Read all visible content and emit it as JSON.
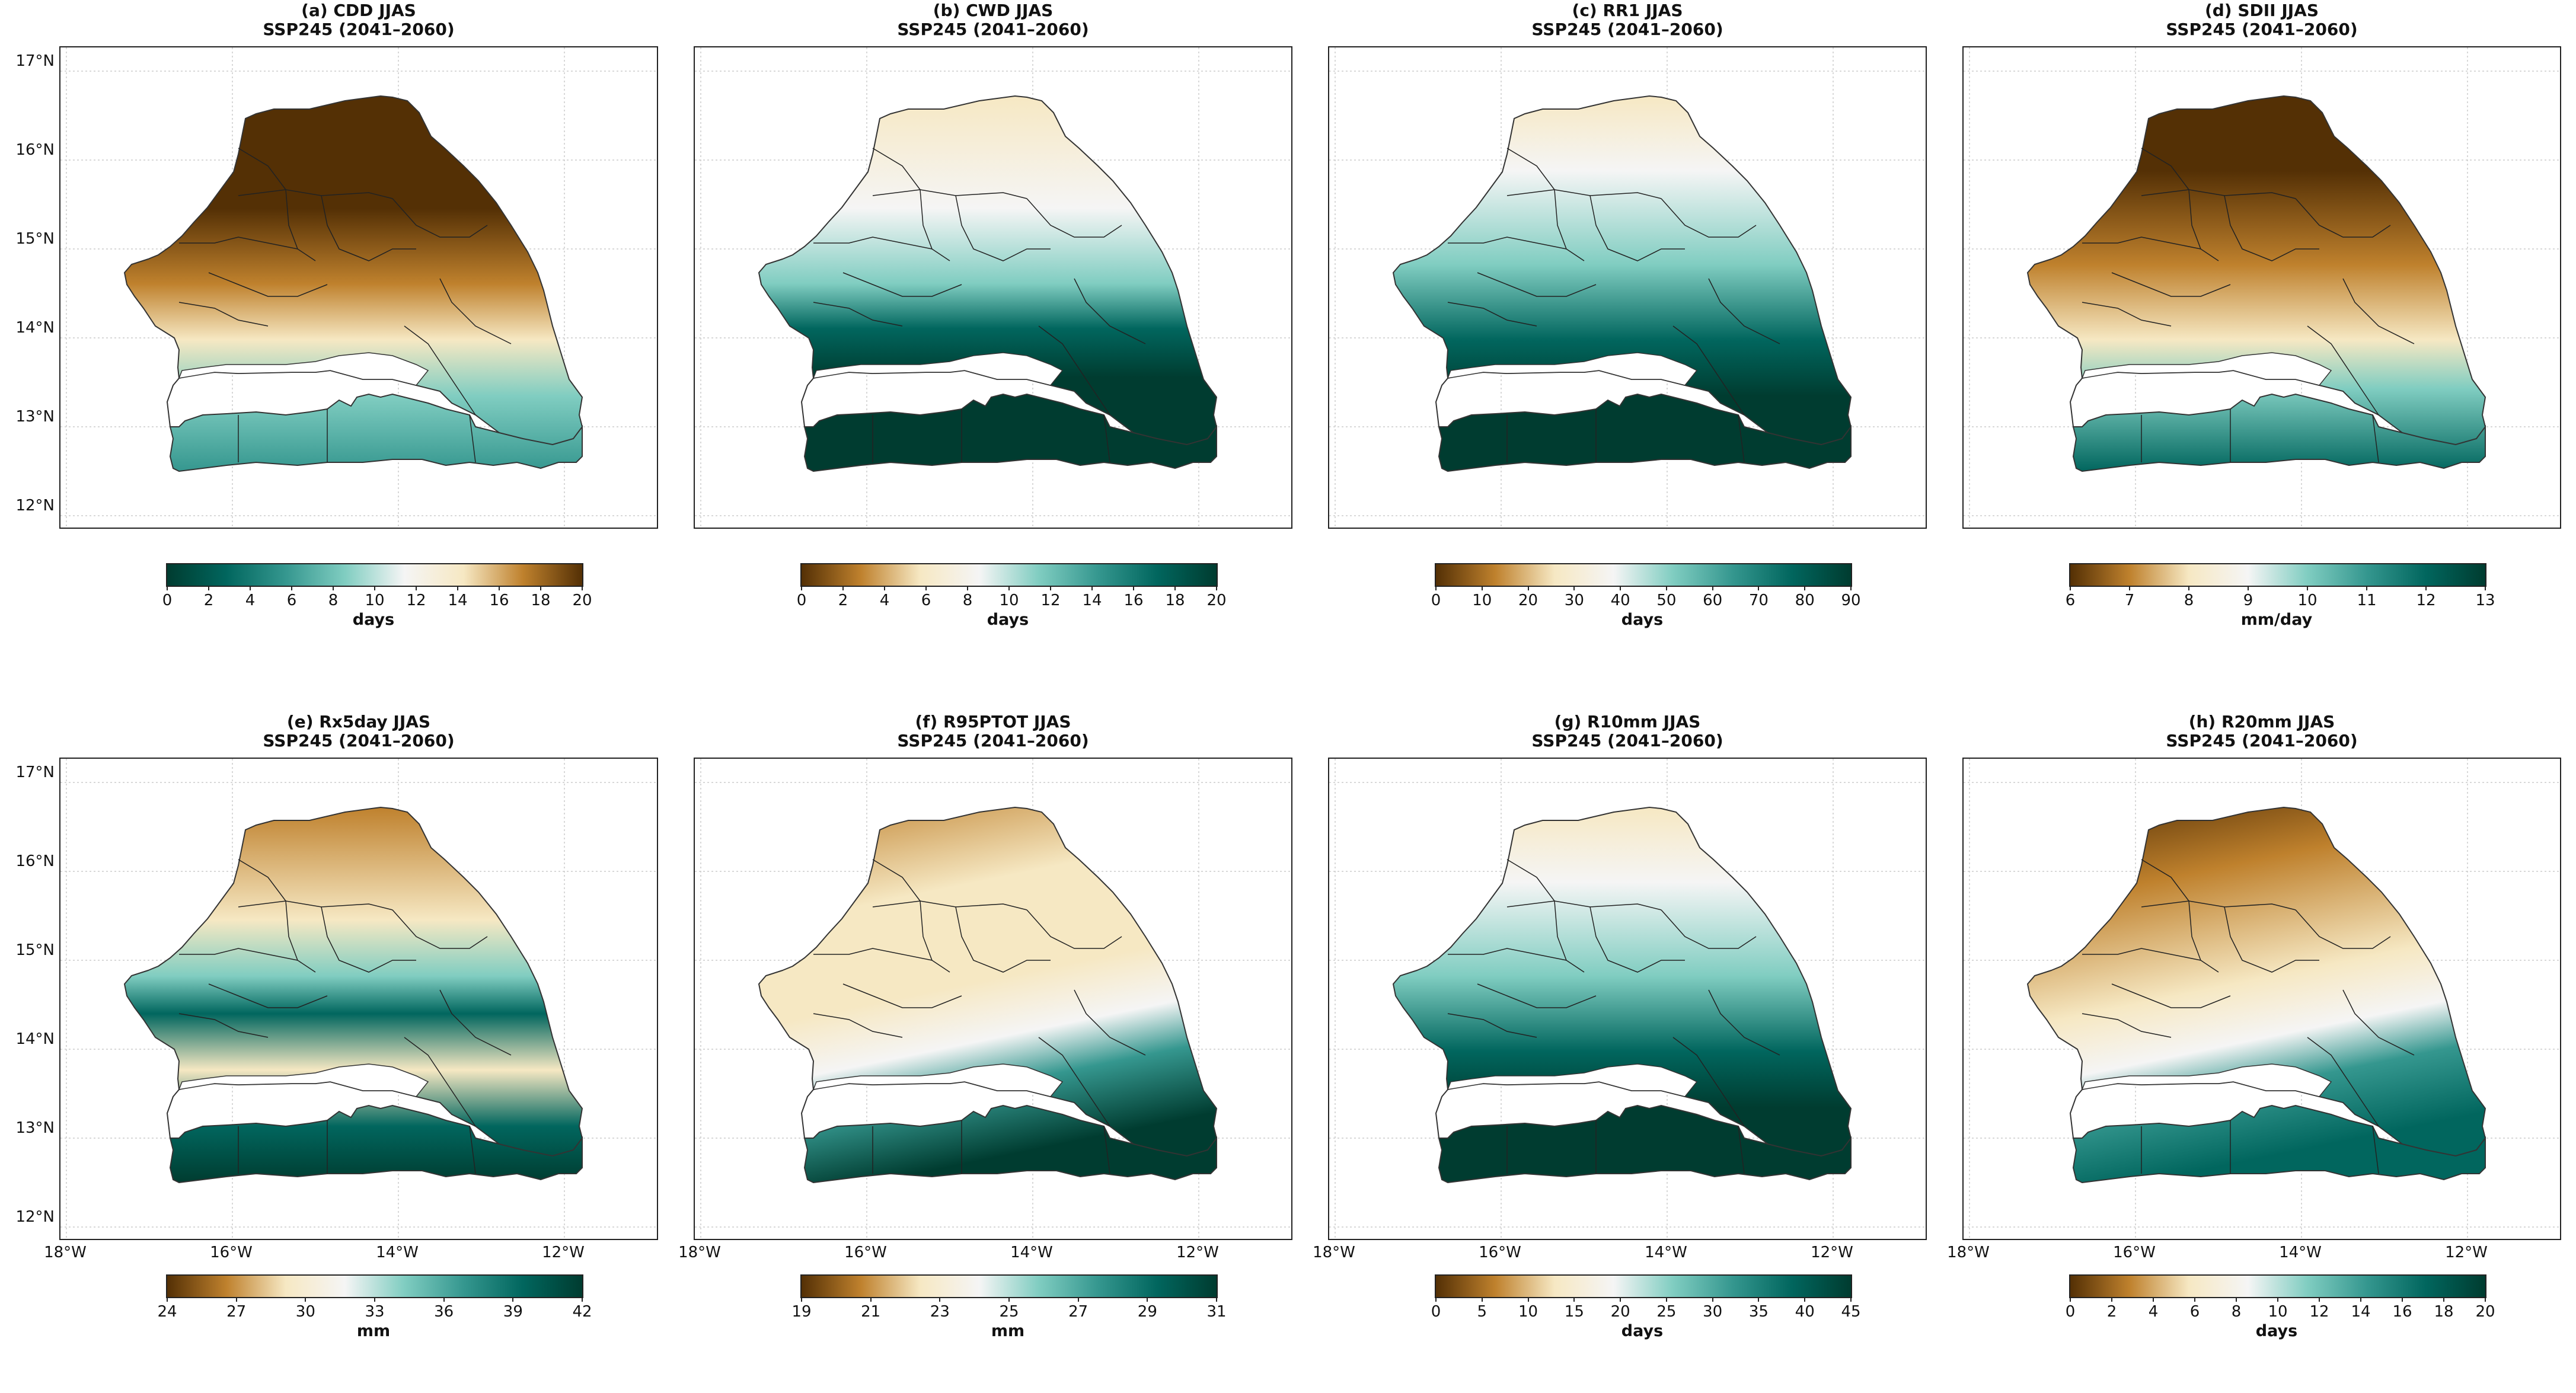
{
  "figure": {
    "scenario": "SSP245 (2041–2060)",
    "lat_labels": [
      "17°N",
      "16°N",
      "15°N",
      "14°N",
      "13°N",
      "12°N"
    ],
    "lon_labels": [
      "18°W",
      "16°W",
      "14°W",
      "12°W"
    ]
  },
  "panels": [
    {
      "title": "(a) CDD JJAS",
      "subtitle": "SSP245 (2041–2060)",
      "unit": "days",
      "cmap": "reverse",
      "ticks": [
        "0",
        "2",
        "4",
        "6",
        "8",
        "10",
        "12",
        "14",
        "16",
        "18",
        "20"
      ],
      "pattern": "north_high"
    },
    {
      "title": "(b) CWD JJAS",
      "subtitle": "SSP245 (2041–2060)",
      "unit": "days",
      "cmap": "normal",
      "ticks": [
        "0",
        "2",
        "4",
        "6",
        "8",
        "10",
        "12",
        "14",
        "16",
        "18",
        "20"
      ],
      "pattern": "south_high_strong"
    },
    {
      "title": "(c) RR1 JJAS",
      "subtitle": "SSP245 (2041–2060)",
      "unit": "days",
      "cmap": "normal",
      "ticks": [
        "0",
        "10",
        "20",
        "30",
        "40",
        "50",
        "60",
        "70",
        "80",
        "90"
      ],
      "pattern": "south_high"
    },
    {
      "title": "(d) SDII JJAS",
      "subtitle": "SSP245 (2041–2060)",
      "unit": "mm/day",
      "cmap": "normal",
      "ticks": [
        "6",
        "7",
        "8",
        "9",
        "10",
        "11",
        "12",
        "13"
      ],
      "pattern": "north_low"
    },
    {
      "title": "(e) Rx5day JJAS",
      "subtitle": "SSP245 (2041–2060)",
      "unit": "mm",
      "cmap": "normal",
      "ticks": [
        "24",
        "27",
        "30",
        "33",
        "36",
        "39",
        "42"
      ],
      "pattern": "center_band"
    },
    {
      "title": "(f) R95PTOT JJAS",
      "subtitle": "SSP245 (2041–2060)",
      "unit": "mm",
      "cmap": "normal",
      "ticks": [
        "19",
        "21",
        "23",
        "25",
        "27",
        "29",
        "31"
      ],
      "pattern": "southwest_high"
    },
    {
      "title": "(g) R10mm JJAS",
      "subtitle": "SSP245 (2041–2060)",
      "unit": "days",
      "cmap": "normal",
      "ticks": [
        "0",
        "5",
        "10",
        "15",
        "20",
        "25",
        "30",
        "35",
        "40",
        "45"
      ],
      "pattern": "south_high"
    },
    {
      "title": "(h) R20mm JJAS",
      "subtitle": "SSP245 (2041–2060)",
      "unit": "days",
      "cmap": "normal",
      "ticks": [
        "0",
        "2",
        "4",
        "6",
        "8",
        "10",
        "12",
        "14",
        "16",
        "18",
        "20"
      ],
      "pattern": "southwest_high2"
    }
  ],
  "colors": {
    "brown_dark": "#543005",
    "brown": "#bf812d",
    "tan": "#f6e8c3",
    "white": "#f5f5f5",
    "teal_light": "#80cdc1",
    "teal": "#35978f",
    "teal_dark": "#01665e",
    "teal_darkest": "#003c30"
  }
}
